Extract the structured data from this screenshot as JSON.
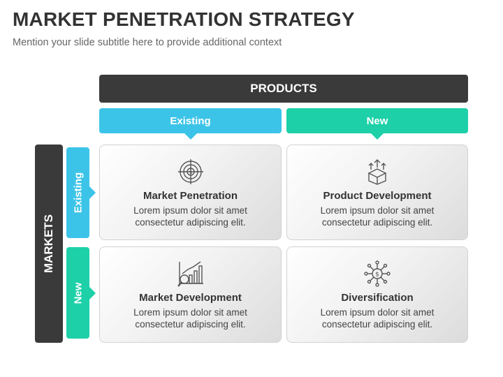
{
  "slide": {
    "title": "MARKET PENETRATION STRATEGY",
    "subtitle": "Mention your slide subtitle here to provide additional context"
  },
  "matrix": {
    "products_label": "PRODUCTS",
    "markets_label": "MARKETS",
    "columns": [
      {
        "label": "Existing",
        "color": "#3cc4e8"
      },
      {
        "label": "New",
        "color": "#1dd0a8"
      }
    ],
    "rows": [
      {
        "label": "Existing",
        "color": "#3cc4e8"
      },
      {
        "label": "New",
        "color": "#1dd0a8"
      }
    ],
    "cells": [
      {
        "title": "Market Penetration",
        "line1": "Lorem ipsum dolor sit amet",
        "line2": "consectetur adipiscing elit.",
        "icon": "target-icon"
      },
      {
        "title": "Product Development",
        "line1": "Lorem ipsum dolor sit amet",
        "line2": "consectetur adipiscing elit.",
        "icon": "box-arrows-icon"
      },
      {
        "title": "Market Development",
        "line1": "Lorem ipsum dolor sit amet",
        "line2": "consectetur adipiscing elit.",
        "icon": "chart-magnifier-icon"
      },
      {
        "title": "Diversification",
        "line1": "Lorem ipsum dolor sit amet",
        "line2": "consectetur adipiscing elit.",
        "icon": "dollar-network-icon"
      }
    ],
    "dark_color": "#3a3a3a"
  }
}
